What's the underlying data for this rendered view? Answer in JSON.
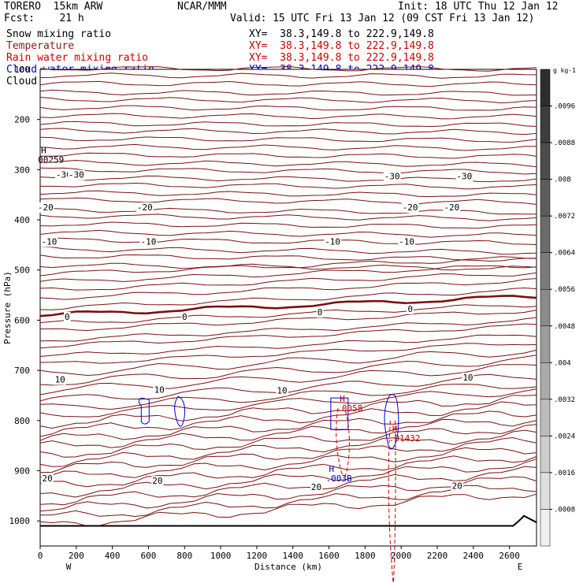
{
  "header": {
    "model": "TORERO  15km ARW",
    "org": "NCAR/MMM",
    "init": "Init: 18 UTC Thu 12 Jan 12",
    "fcst": "Fcst:    21 h",
    "valid": "Valid: 15 UTC Fri 13 Jan 12 (09 CST Fri 13 Jan 12)",
    "xy_range": "XY=  38.3,149.8 to 222.9,149.8",
    "fields": [
      {
        "name": "Snow mixing ratio",
        "color": "#000000"
      },
      {
        "name": "Temperature",
        "color": "#8b1a1a"
      },
      {
        "name": "Rain water mixing ratio",
        "color": "#cc0000"
      },
      {
        "name": "Cloud water mixing ratio",
        "color": "#0000cc"
      },
      {
        "name": "Cloud ice mixing ratio",
        "color": "#000000"
      }
    ]
  },
  "colorbar": {
    "unit": "g kg-1",
    "labels": [
      ".0096",
      ".0088",
      ".008",
      ".0072",
      ".0064",
      ".0056",
      ".0048",
      ".004",
      ".0032",
      ".0024",
      ".0016",
      ".0008"
    ],
    "shades": [
      "#2e2e2e",
      "#3d3d3d",
      "#4c4c4c",
      "#5c5c5c",
      "#6b6b6b",
      "#7b7b7b",
      "#8b8b8b",
      "#9b9b9b",
      "#ababab",
      "#bcbcbc",
      "#cdcdcd",
      "#dedede",
      "#efefef"
    ]
  },
  "chart_data": {
    "type": "cross-section contour",
    "xlabel": "Distance (km)",
    "ylabel": "Pressure (hPa)",
    "xlim": [
      0,
      2750
    ],
    "ylim": [
      1050,
      100
    ],
    "x_ticks": [
      0,
      200,
      400,
      600,
      800,
      1000,
      1200,
      1400,
      1600,
      1800,
      2000,
      2200,
      2400,
      2600
    ],
    "y_ticks": [
      200,
      300,
      400,
      500,
      600,
      700,
      800,
      900,
      1000
    ],
    "y_top_label": "100",
    "x_endpoints": {
      "left": "W",
      "right": "E"
    },
    "grid": false,
    "temperature_contours": [
      {
        "label": "-30",
        "points": [
          [
            130,
            310
          ],
          [
            200,
            310
          ],
          [
            1950,
            313
          ],
          [
            2350,
            313
          ]
        ]
      },
      {
        "label": "-20",
        "points": [
          [
            30,
            375
          ],
          [
            580,
            375
          ],
          [
            2050,
            375
          ],
          [
            2280,
            375
          ]
        ]
      },
      {
        "label": "-10",
        "points": [
          [
            50,
            443
          ],
          [
            600,
            443
          ],
          [
            1620,
            443
          ],
          [
            2030,
            443
          ]
        ]
      },
      {
        "label": "0",
        "points": [
          [
            150,
            593
          ],
          [
            800,
            593
          ],
          [
            1550,
            584
          ],
          [
            2050,
            577
          ]
        ]
      },
      {
        "label": "10",
        "points": [
          [
            110,
            718
          ],
          [
            660,
            738
          ],
          [
            1340,
            740
          ],
          [
            2370,
            714
          ]
        ]
      },
      {
        "label": "20",
        "points": [
          [
            40,
            915
          ],
          [
            650,
            920
          ],
          [
            1530,
            932
          ],
          [
            2310,
            930
          ]
        ]
      }
    ],
    "max_labels": [
      {
        "mark": "H",
        "value": "00259",
        "x": 5,
        "y": 280,
        "color": "#000000"
      },
      {
        "mark": "H",
        "value": ".0058",
        "x": 1660,
        "y": 775,
        "color": "#cc0000"
      },
      {
        "mark": "H",
        "value": ".01432",
        "x": 1950,
        "y": 835,
        "color": "#cc0000"
      },
      {
        "mark": "H",
        "value": ".003B",
        "x": 1600,
        "y": 915,
        "color": "#0000cc"
      }
    ]
  }
}
